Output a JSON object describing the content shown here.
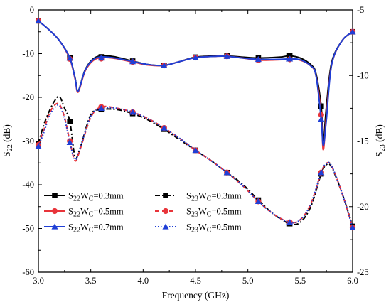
{
  "chart_data": {
    "type": "line",
    "xlabel": "Frequency (GHz)",
    "ylabel_left": {
      "main": "S",
      "sub": "22",
      "unit": " (dB)"
    },
    "ylabel_right": {
      "main": "S",
      "sub": "23",
      "unit": " (dB)"
    },
    "xlim": [
      3.0,
      6.0
    ],
    "ylim_left": [
      -60,
      0
    ],
    "ylim_right": [
      -25,
      -5
    ],
    "x_ticks": [
      "3.0",
      "3.5",
      "4.0",
      "4.5",
      "5.0",
      "5.5",
      "6.0"
    ],
    "y_left_ticks": [
      "0",
      "-10",
      "-20",
      "-30",
      "-40",
      "-50",
      "-60"
    ],
    "y_right_ticks": [
      "-5",
      "-10",
      "-15",
      "-20",
      "-25"
    ],
    "grid": false,
    "legend_placement": "bottom-left",
    "series": [
      {
        "name": "S22WC=0.3mm",
        "label": {
          "a": "S",
          "a_sub": "22",
          "b": "W",
          "b_sub": "C",
          "rest": "=0.3mm"
        },
        "axis": "left",
        "color": "#000000",
        "dash": "solid",
        "marker": "square",
        "x": [
          3.0,
          3.1,
          3.2,
          3.3,
          3.35,
          3.38,
          3.45,
          3.55,
          3.7,
          3.9,
          4.05,
          4.2,
          4.35,
          4.5,
          4.7,
          4.8,
          4.95,
          5.1,
          5.3,
          5.4,
          5.5,
          5.6,
          5.65,
          5.7,
          5.72,
          5.75,
          5.8,
          5.9,
          6.0
        ],
        "y": [
          -2.5,
          -4.5,
          -7.0,
          -11.0,
          -15.5,
          -18.5,
          -13.5,
          -10.8,
          -10.6,
          -11.7,
          -12.5,
          -12.7,
          -11.8,
          -10.8,
          -10.5,
          -10.5,
          -10.8,
          -11.0,
          -10.8,
          -10.5,
          -11.0,
          -12.5,
          -14.5,
          -22.0,
          -30.0,
          -22.0,
          -12.0,
          -7.0,
          -5.0
        ],
        "marker_x": [
          3.0,
          3.3,
          3.6,
          3.9,
          4.2,
          4.5,
          4.8,
          5.1,
          5.4,
          5.7,
          6.0
        ]
      },
      {
        "name": "S22WC=0.5mm",
        "label": {
          "a": "S",
          "a_sub": "22",
          "b": "W",
          "b_sub": "C",
          "rest": "=0.5mm"
        },
        "axis": "left",
        "color": "#e8343a",
        "dash": "solid",
        "marker": "circle",
        "x": [
          3.0,
          3.1,
          3.2,
          3.3,
          3.35,
          3.38,
          3.45,
          3.55,
          3.7,
          3.9,
          4.05,
          4.2,
          4.35,
          4.5,
          4.7,
          4.8,
          4.95,
          5.1,
          5.3,
          5.4,
          5.5,
          5.6,
          5.65,
          5.7,
          5.72,
          5.75,
          5.8,
          5.9,
          6.0
        ],
        "y": [
          -2.5,
          -4.5,
          -7.0,
          -11.2,
          -15.8,
          -18.8,
          -13.8,
          -11.2,
          -11.0,
          -11.9,
          -12.6,
          -12.7,
          -11.8,
          -10.9,
          -10.6,
          -10.6,
          -11.0,
          -11.5,
          -11.4,
          -11.3,
          -11.5,
          -12.8,
          -15.0,
          -24.0,
          -32.0,
          -24.0,
          -12.5,
          -7.0,
          -5.0
        ],
        "marker_x": [
          3.0,
          3.3,
          3.6,
          3.9,
          4.2,
          4.5,
          4.8,
          5.1,
          5.4,
          5.7,
          6.0
        ]
      },
      {
        "name": "S22WC=0.7mm",
        "label": {
          "a": "S",
          "a_sub": "22",
          "b": "W",
          "b_sub": "C",
          "rest": "=0.7mm"
        },
        "axis": "left",
        "color": "#1f3fd6",
        "dash": "solid",
        "marker": "triangle",
        "x": [
          3.0,
          3.1,
          3.2,
          3.3,
          3.35,
          3.38,
          3.45,
          3.55,
          3.7,
          3.9,
          4.05,
          4.2,
          4.35,
          4.5,
          4.7,
          4.8,
          4.95,
          5.1,
          5.3,
          5.4,
          5.5,
          5.6,
          5.65,
          5.7,
          5.72,
          5.75,
          5.8,
          5.9,
          6.0
        ],
        "y": [
          -2.5,
          -4.5,
          -7.0,
          -11.0,
          -15.6,
          -18.6,
          -13.6,
          -11.0,
          -10.9,
          -11.8,
          -12.5,
          -12.7,
          -11.8,
          -10.9,
          -10.6,
          -10.6,
          -11.0,
          -11.3,
          -11.3,
          -11.2,
          -11.4,
          -12.8,
          -15.0,
          -25.0,
          -31.0,
          -25.0,
          -12.5,
          -7.0,
          -5.0
        ],
        "marker_x": [
          3.0,
          3.3,
          3.6,
          3.9,
          4.2,
          4.5,
          4.8,
          5.1,
          5.4,
          5.7,
          6.0
        ]
      },
      {
        "name": "S23WC=0.3mm",
        "label": {
          "a": "S",
          "a_sub": "23",
          "b": "W",
          "b_sub": "C",
          "rest": "=0.3mm"
        },
        "axis": "right",
        "color": "#000000",
        "dash": "dashdot",
        "marker": "square",
        "x": [
          3.0,
          3.05,
          3.1,
          3.15,
          3.2,
          3.25,
          3.3,
          3.35,
          3.4,
          3.5,
          3.6,
          3.75,
          3.9,
          4.05,
          4.2,
          4.35,
          4.5,
          4.65,
          4.8,
          4.95,
          5.1,
          5.25,
          5.4,
          5.5,
          5.6,
          5.7,
          5.75,
          5.8,
          5.9,
          6.0
        ],
        "y": [
          -15.2,
          -13.8,
          -12.8,
          -12.0,
          -11.6,
          -12.5,
          -13.5,
          -16.2,
          -15.5,
          -13.0,
          -12.6,
          -12.6,
          -12.9,
          -13.4,
          -14.1,
          -14.9,
          -15.7,
          -16.5,
          -17.4,
          -18.3,
          -19.5,
          -20.6,
          -21.3,
          -21.2,
          -20.0,
          -17.5,
          -16.8,
          -17.0,
          -19.0,
          -21.5
        ],
        "marker_x": [
          3.0,
          3.3,
          3.6,
          3.9,
          4.2,
          4.5,
          4.8,
          5.1,
          5.4,
          5.7,
          6.0
        ]
      },
      {
        "name": "S23WC=0.5mm",
        "label": {
          "a": "S",
          "a_sub": "23",
          "b": "W",
          "b_sub": "C",
          "rest": "=0.5mm"
        },
        "axis": "right",
        "color": "#e8343a",
        "dash": "dash",
        "marker": "circle",
        "x": [
          3.0,
          3.05,
          3.1,
          3.15,
          3.2,
          3.25,
          3.3,
          3.35,
          3.4,
          3.5,
          3.6,
          3.75,
          3.9,
          4.05,
          4.2,
          4.35,
          4.5,
          4.65,
          4.8,
          4.95,
          5.1,
          5.25,
          5.4,
          5.5,
          5.6,
          5.7,
          5.75,
          5.8,
          5.9,
          6.0
        ],
        "y": [
          -15.3,
          -14.2,
          -13.0,
          -12.3,
          -12.2,
          -13.2,
          -15.0,
          -16.5,
          -15.6,
          -13.2,
          -12.4,
          -12.5,
          -12.8,
          -13.3,
          -14.0,
          -14.8,
          -15.7,
          -16.5,
          -17.4,
          -18.4,
          -19.6,
          -20.6,
          -21.2,
          -21.0,
          -19.8,
          -17.4,
          -16.7,
          -16.9,
          -19.0,
          -21.6
        ],
        "marker_x": [
          3.0,
          3.3,
          3.6,
          3.9,
          4.2,
          4.5,
          4.8,
          5.1,
          5.4,
          5.7,
          6.0
        ]
      },
      {
        "name": "S23WC=0.5mm",
        "label": {
          "a": "S",
          "a_sub": "23",
          "b": "W",
          "b_sub": "C",
          "rest": "=0.5mm"
        },
        "axis": "right",
        "color": "#1f3fd6",
        "dash": "dot",
        "marker": "triangle",
        "x": [
          3.0,
          3.05,
          3.1,
          3.15,
          3.2,
          3.25,
          3.3,
          3.35,
          3.4,
          3.5,
          3.6,
          3.75,
          3.9,
          4.05,
          4.2,
          4.35,
          4.5,
          4.65,
          4.8,
          4.95,
          5.1,
          5.25,
          5.4,
          5.5,
          5.6,
          5.7,
          5.75,
          5.8,
          5.9,
          6.0
        ],
        "y": [
          -15.4,
          -14.4,
          -13.2,
          -12.5,
          -12.3,
          -13.3,
          -15.1,
          -16.4,
          -15.5,
          -13.1,
          -12.5,
          -12.5,
          -12.8,
          -13.3,
          -14.0,
          -14.8,
          -15.7,
          -16.5,
          -17.4,
          -18.4,
          -19.6,
          -20.6,
          -21.2,
          -21.0,
          -19.8,
          -17.4,
          -16.7,
          -16.9,
          -19.0,
          -21.6
        ],
        "marker_x": [
          3.0,
          3.3,
          3.6,
          3.9,
          4.2,
          4.5,
          4.8,
          5.1,
          5.4,
          5.7,
          6.0
        ]
      }
    ]
  }
}
